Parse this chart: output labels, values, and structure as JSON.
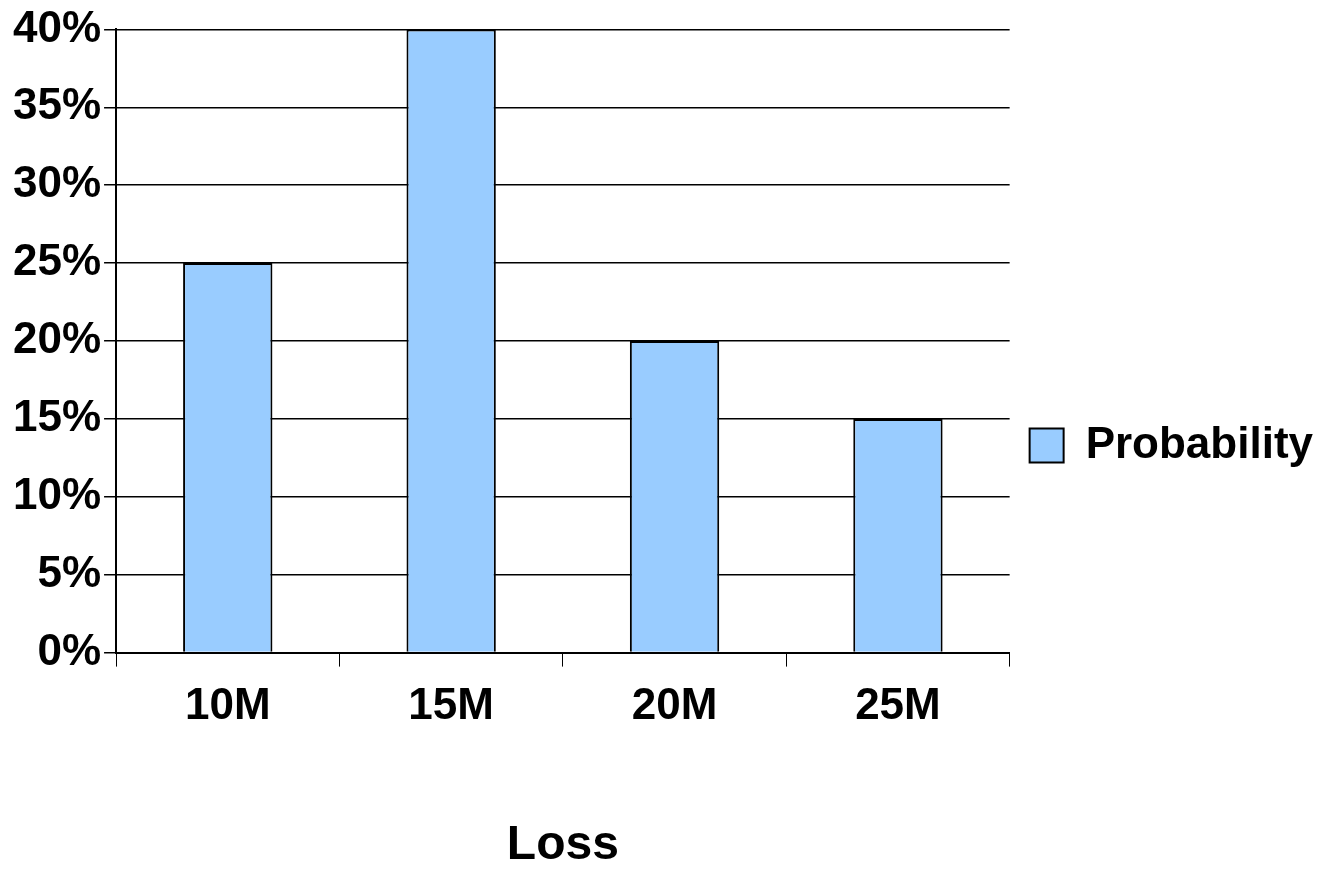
{
  "chart_data": {
    "type": "bar",
    "xlabel": "Loss",
    "categories": [
      "10M",
      "15M",
      "20M",
      "25M"
    ],
    "series": [
      {
        "name": "Probability",
        "color": "#99ccff",
        "values": [
          25,
          40,
          20,
          15
        ]
      }
    ],
    "ylim": [
      0,
      40
    ],
    "yticks": [
      {
        "value": 0,
        "label": "0%"
      },
      {
        "value": 5,
        "label": "5%"
      },
      {
        "value": 10,
        "label": "10%"
      },
      {
        "value": 15,
        "label": "15%"
      },
      {
        "value": 20,
        "label": "20%"
      },
      {
        "value": 25,
        "label": "25%"
      },
      {
        "value": 30,
        "label": "30%"
      },
      {
        "value": 35,
        "label": "35%"
      },
      {
        "value": 40,
        "label": "40%"
      }
    ],
    "grid": "y",
    "legend": "right"
  }
}
